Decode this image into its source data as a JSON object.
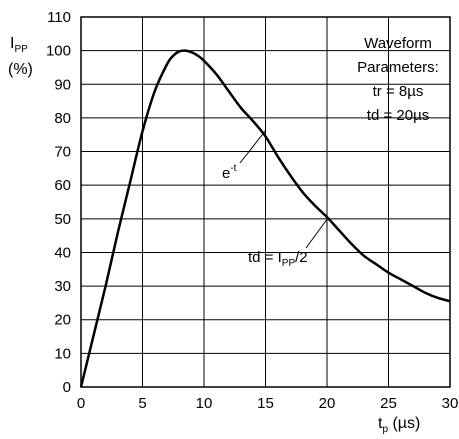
{
  "chart_data": {
    "type": "line",
    "ylabel": {
      "main": "I",
      "sub": "PP",
      "unit": "(%)"
    },
    "xlabel": {
      "main": "t",
      "sub": "p",
      "unit": " (µs)"
    },
    "xlim": [
      0,
      30
    ],
    "ylim": [
      0,
      110
    ],
    "xticks": [
      0,
      5,
      10,
      15,
      20,
      25,
      30
    ],
    "yticks": [
      0,
      10,
      20,
      30,
      40,
      50,
      60,
      70,
      80,
      90,
      100,
      110
    ],
    "grid": true,
    "series": [
      {
        "x": [
          0,
          1,
          2,
          3,
          4,
          5,
          6,
          7,
          7.5,
          8,
          8.5,
          9,
          9.5,
          10,
          11,
          12,
          13,
          14,
          15,
          16,
          17,
          18,
          19,
          20,
          21,
          22,
          23,
          24,
          25,
          26,
          27,
          28,
          29,
          30
        ],
        "y": [
          0,
          15,
          30,
          46,
          61,
          76,
          88,
          96,
          98.5,
          99.8,
          100,
          99.5,
          98.5,
          97,
          93,
          88,
          83,
          79,
          74.5,
          68.5,
          63,
          58,
          54,
          50.5,
          46.5,
          42.5,
          39,
          36.5,
          34,
          32,
          30,
          28,
          26.5,
          25.5
        ]
      }
    ],
    "annotations": {
      "parameters": [
        "Waveform",
        "Parameters:",
        "tr = 8µs",
        "td = 20µs"
      ],
      "exp_label": {
        "main": "e",
        "sup": "-t"
      },
      "td_label": {
        "pre": "td = I",
        "sub": "PP",
        "post": "/2"
      }
    }
  }
}
